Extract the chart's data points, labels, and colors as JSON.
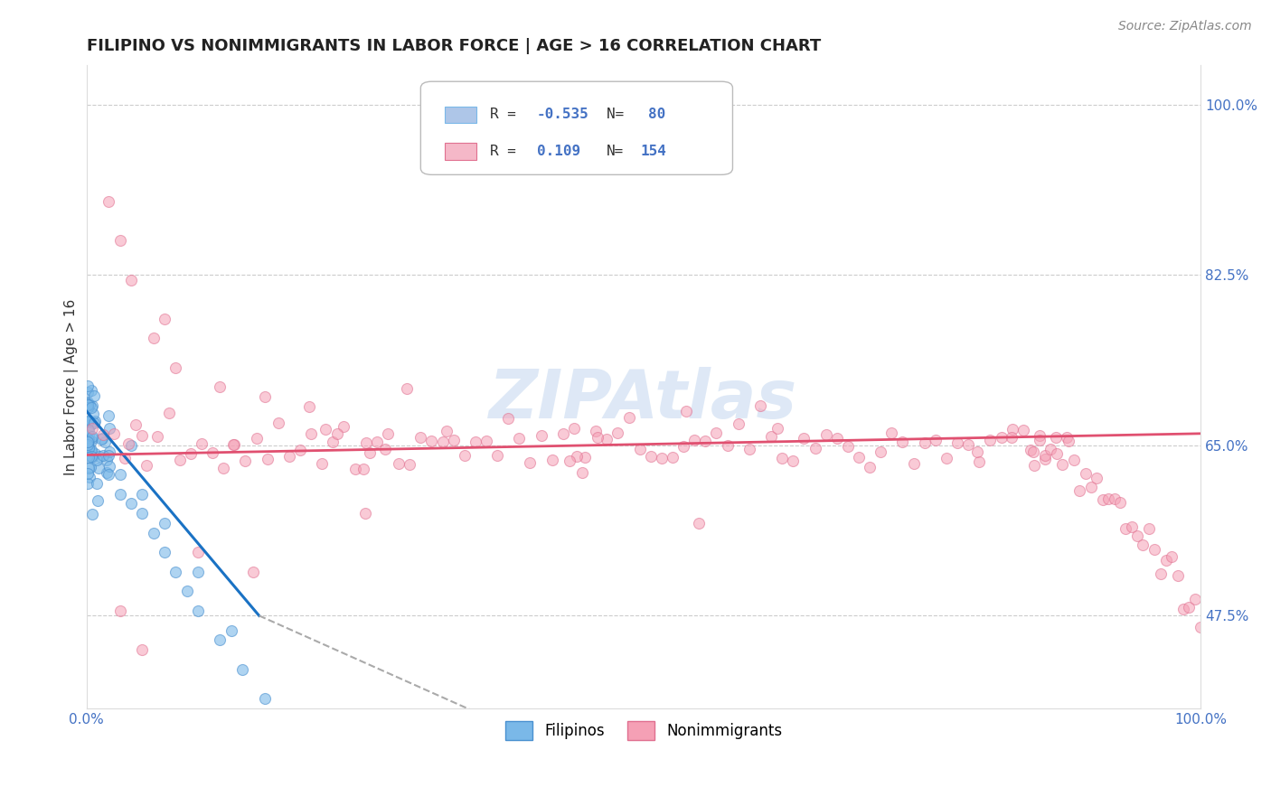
{
  "title": "FILIPINO VS NONIMMIGRANTS IN LABOR FORCE | AGE > 16 CORRELATION CHART",
  "source_text": "Source: ZipAtlas.com",
  "ylabel": "In Labor Force | Age > 16",
  "xticklabels": [
    "0.0%",
    "100.0%"
  ],
  "yticklabels_right": [
    "47.5%",
    "65.0%",
    "82.5%",
    "100.0%"
  ],
  "xlim": [
    0.0,
    1.0
  ],
  "ylim": [
    0.38,
    1.04
  ],
  "ytick_values": [
    0.475,
    0.65,
    0.825,
    1.0
  ],
  "background_color": "#ffffff",
  "grid_color": "#cccccc",
  "title_fontsize": 13,
  "axis_label_fontsize": 11,
  "tick_fontsize": 11,
  "watermark_text": "ZIPAtlas",
  "watermark_color": "#c8daf0",
  "watermark_alpha": 0.6
}
